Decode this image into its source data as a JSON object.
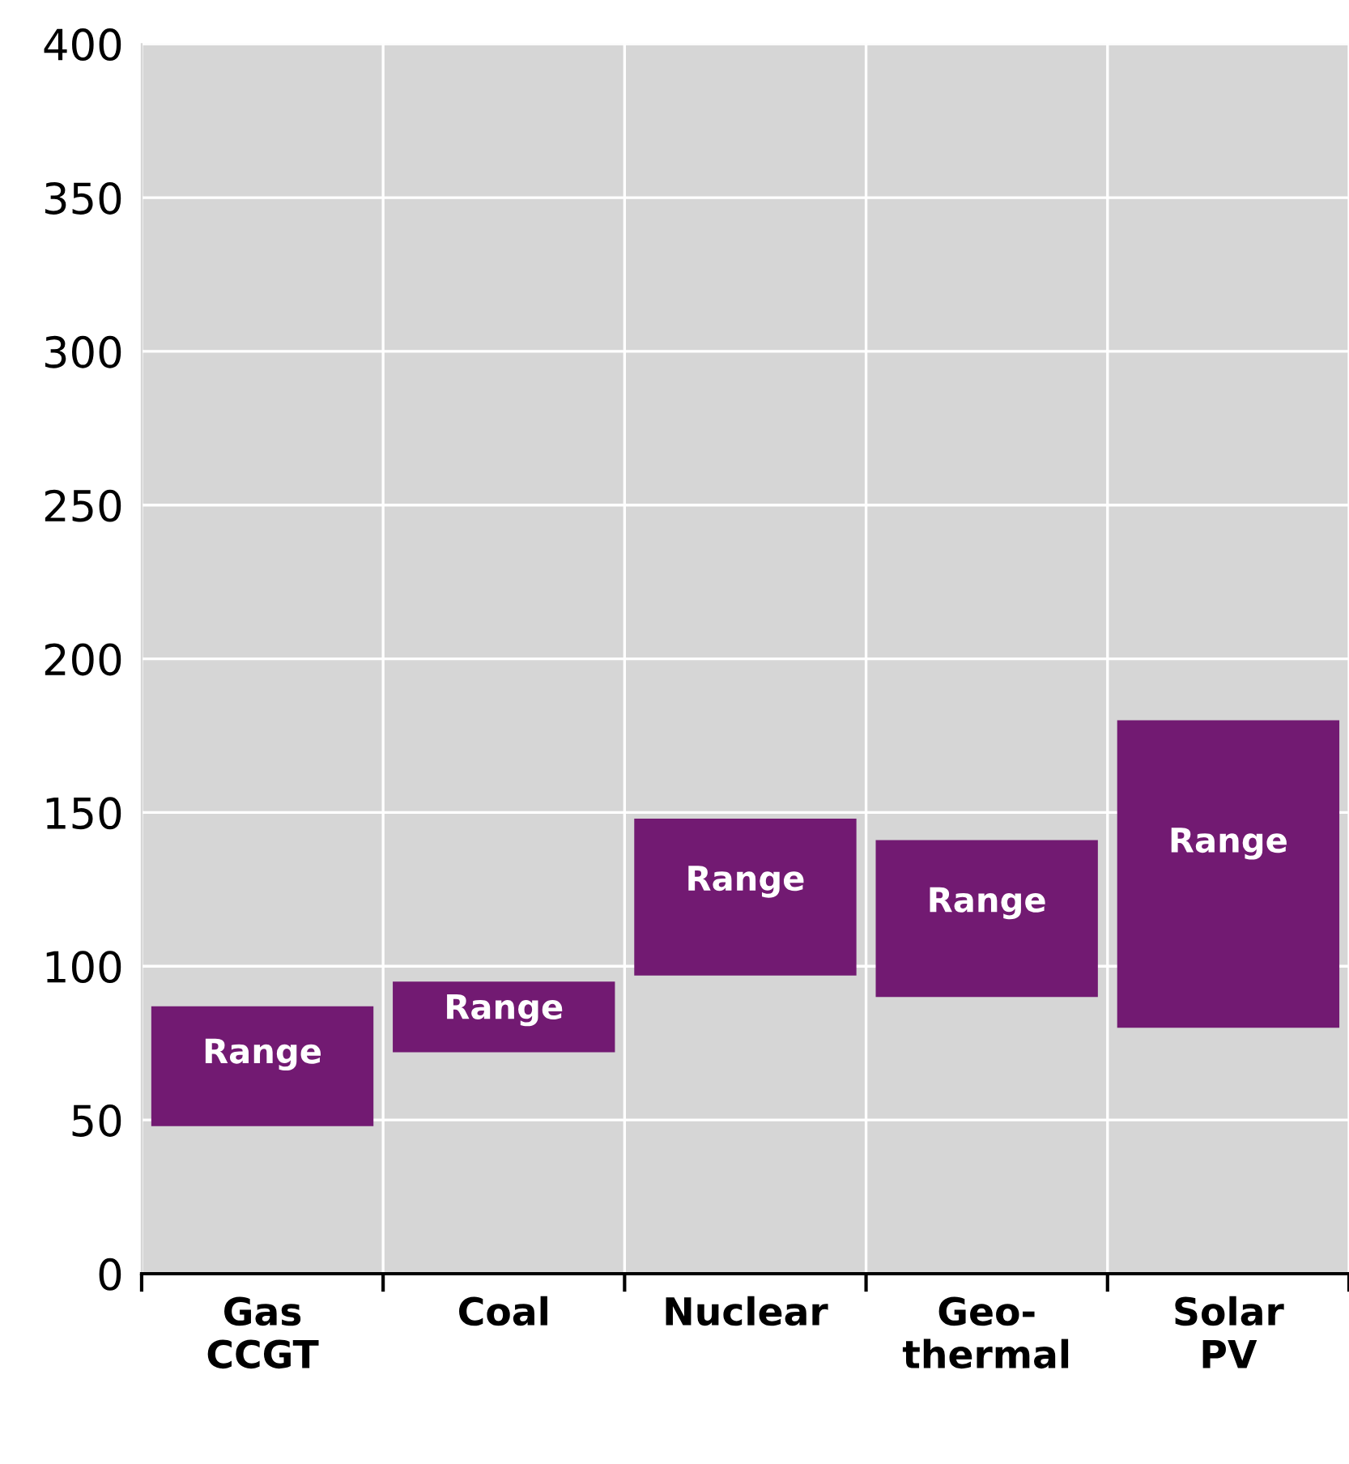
{
  "chart_data": {
    "type": "bar",
    "categories": [
      "Gas\nCCGT",
      "Coal",
      "Nuclear",
      "Geo-\nthermal",
      "Solar\nPV"
    ],
    "base": [
      48,
      72,
      97,
      90,
      80
    ],
    "values": [
      39,
      23,
      51,
      51,
      100
    ],
    "value_labels": [
      "Range",
      "Range",
      "Range",
      "Range",
      "Range"
    ],
    "color": "#721a72",
    "ylim": [
      0,
      400
    ],
    "yticks": [
      0,
      50,
      100,
      150,
      200,
      250,
      300,
      350,
      400
    ],
    "grid": true
  }
}
